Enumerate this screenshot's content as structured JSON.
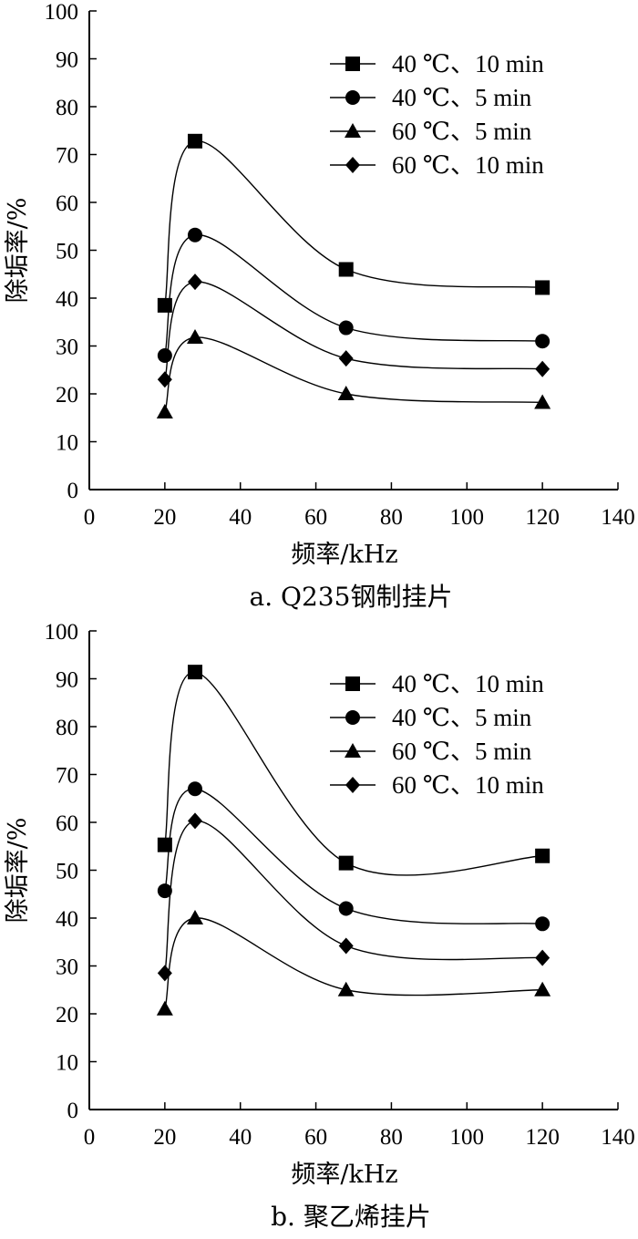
{
  "chart_data": [
    {
      "type": "line",
      "caption": "a. Q235钢制挂片",
      "xlabel": "频率/kHz",
      "ylabel": "除垢率/%",
      "xlim": [
        0,
        140
      ],
      "ylim": [
        0,
        100
      ],
      "xticks": [
        0,
        20,
        40,
        60,
        80,
        100,
        120,
        140
      ],
      "yticks": [
        0,
        10,
        20,
        30,
        40,
        50,
        60,
        70,
        80,
        90,
        100
      ],
      "legend_position": "top-right",
      "x": [
        20,
        28,
        68,
        120
      ],
      "series": [
        {
          "name": "40 ℃、10 min",
          "marker": "square",
          "values": [
            38.5,
            72.8,
            46.0,
            42.2
          ]
        },
        {
          "name": "40 ℃、5 min",
          "marker": "circle",
          "values": [
            28.0,
            53.2,
            33.8,
            31.0
          ]
        },
        {
          "name": "60 ℃、5 min",
          "marker": "triangle",
          "values": [
            16.2,
            31.8,
            20.0,
            18.2
          ]
        },
        {
          "name": "60 ℃、10 min",
          "marker": "diamond",
          "values": [
            23.0,
            43.4,
            27.4,
            25.2
          ]
        }
      ]
    },
    {
      "type": "line",
      "caption": "b. 聚乙烯挂片",
      "xlabel": "频率/kHz",
      "ylabel": "除垢率/%",
      "xlim": [
        0,
        140
      ],
      "ylim": [
        0,
        100
      ],
      "xticks": [
        0,
        20,
        40,
        60,
        80,
        100,
        120,
        140
      ],
      "yticks": [
        0,
        10,
        20,
        30,
        40,
        50,
        60,
        70,
        80,
        90,
        100
      ],
      "legend_position": "top-right",
      "x": [
        20,
        28,
        68,
        120
      ],
      "series": [
        {
          "name": "40 ℃、10 min",
          "marker": "square",
          "values": [
            55.3,
            91.4,
            51.5,
            53.0
          ]
        },
        {
          "name": "40 ℃、5 min",
          "marker": "circle",
          "values": [
            45.7,
            67.0,
            42.0,
            38.8
          ]
        },
        {
          "name": "60 ℃、5 min",
          "marker": "triangle",
          "values": [
            21.0,
            40.0,
            25.0,
            25.0
          ]
        },
        {
          "name": "60 ℃、10 min",
          "marker": "diamond",
          "values": [
            28.5,
            60.3,
            34.2,
            31.7
          ]
        }
      ]
    }
  ]
}
